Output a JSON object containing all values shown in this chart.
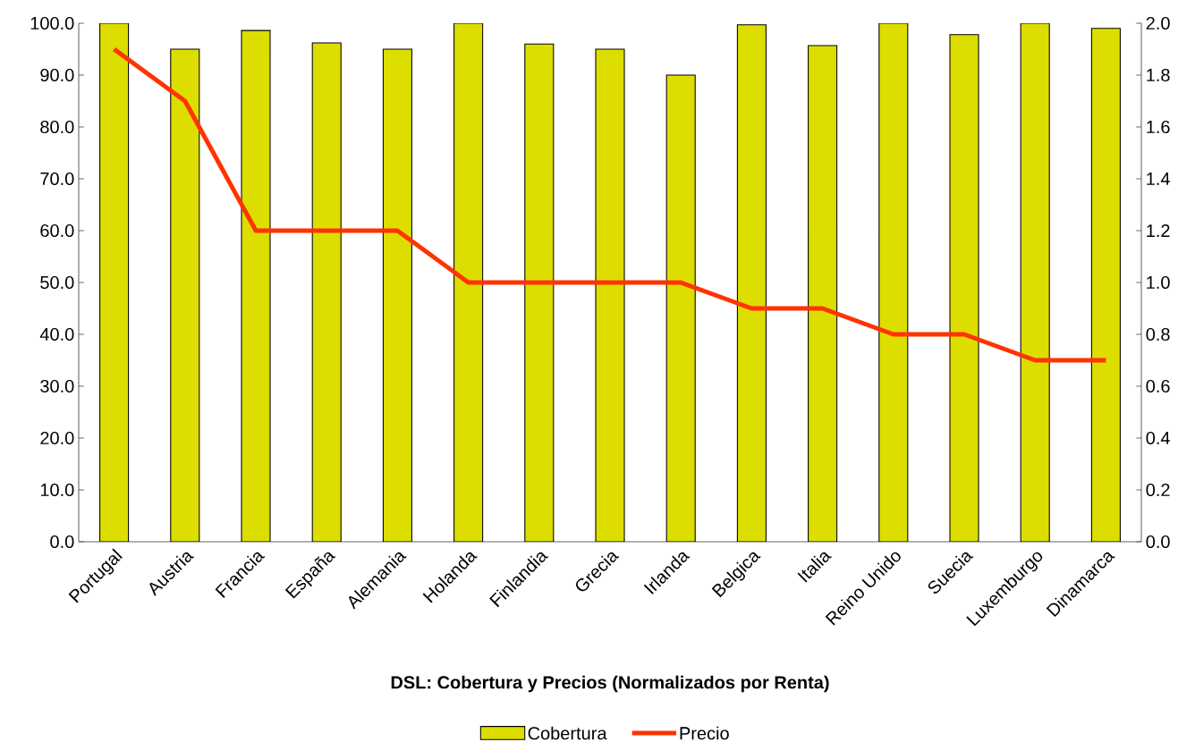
{
  "chart_data": {
    "type": "bar",
    "title": "DSL: Cobertura y Precios (Normalizados por Renta)",
    "categories": [
      "Portugal",
      "Austria",
      "Francia",
      "España",
      "Alemania",
      "Holanda",
      "Finlandia",
      "Grecia",
      "Irlanda",
      "Belgica",
      "Italia",
      "Reino Unido",
      "Suecia",
      "Luxemburgo",
      "Dinamarca"
    ],
    "series": [
      {
        "name": "Cobertura",
        "color": "#dddd00",
        "values": [
          100,
          95,
          98.6,
          96.2,
          95,
          100,
          96,
          95,
          90,
          99.7,
          95.7,
          100,
          97.8,
          100,
          99
        ]
      },
      {
        "name": "Precio",
        "type": "line",
        "axis": "y2",
        "color": "#ff3300",
        "values": [
          1.9,
          1.7,
          1.2,
          1.2,
          1.2,
          1.0,
          1.0,
          1.0,
          1.0,
          0.9,
          0.9,
          0.8,
          0.8,
          0.7,
          0.7
        ]
      }
    ],
    "ylim": [
      0,
      100
    ],
    "yticks": [
      {
        "value": 0,
        "label": "0.0"
      },
      {
        "value": 10,
        "label": "10.0"
      },
      {
        "value": 20,
        "label": "20.0"
      },
      {
        "value": 30,
        "label": "30.0"
      },
      {
        "value": 40,
        "label": "40.0"
      },
      {
        "value": 50,
        "label": "50.0"
      },
      {
        "value": 60,
        "label": "60.0"
      },
      {
        "value": 70,
        "label": "70.0"
      },
      {
        "value": 80,
        "label": "80.0"
      },
      {
        "value": 90,
        "label": "90.0"
      },
      {
        "value": 100,
        "label": "100.0"
      }
    ],
    "y2lim": [
      0,
      2
    ],
    "y2ticks": [
      {
        "value": 0,
        "label": "0.0"
      },
      {
        "value": 0.2,
        "label": "0.2"
      },
      {
        "value": 0.4,
        "label": "0.4"
      },
      {
        "value": 0.6,
        "label": "0.6"
      },
      {
        "value": 0.8,
        "label": "0.8"
      },
      {
        "value": 1,
        "label": "1.0"
      },
      {
        "value": 1.2,
        "label": "1.2"
      },
      {
        "value": 1.4,
        "label": "1.4"
      },
      {
        "value": 1.6,
        "label": "1.6"
      },
      {
        "value": 1.8,
        "label": "1.8"
      },
      {
        "value": 2,
        "label": "2.0"
      }
    ],
    "grid": false,
    "legend": "bottom",
    "marker": "none",
    "line_style": "solid"
  }
}
